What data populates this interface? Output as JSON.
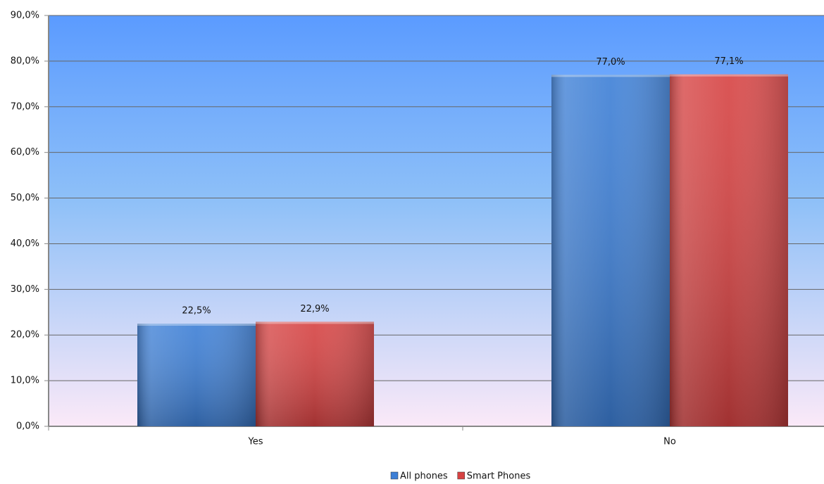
{
  "chart_data": {
    "type": "bar",
    "categories": [
      "Yes",
      "No"
    ],
    "series": [
      {
        "name": "All phones",
        "color": "#3d7fd6",
        "values": [
          22.5,
          77.0
        ],
        "value_labels": [
          "22,5%",
          "77,0%"
        ]
      },
      {
        "name": "Smart Phones",
        "color": "#d64242",
        "values": [
          22.9,
          77.1
        ],
        "value_labels": [
          "22,9%",
          "77,1%"
        ]
      }
    ],
    "ylim": [
      0,
      90
    ],
    "yticks": [
      {
        "value": 0,
        "label": "0,0%"
      },
      {
        "value": 10,
        "label": "10,0%"
      },
      {
        "value": 20,
        "label": "20,0%"
      },
      {
        "value": 30,
        "label": "30,0%"
      },
      {
        "value": 40,
        "label": "40,0%"
      },
      {
        "value": 50,
        "label": "50,0%"
      },
      {
        "value": 60,
        "label": "60,0%"
      },
      {
        "value": 70,
        "label": "70,0%"
      },
      {
        "value": 80,
        "label": "80,0%"
      },
      {
        "value": 90,
        "label": "90,0%"
      }
    ],
    "grid": true,
    "legend": "bottom"
  }
}
